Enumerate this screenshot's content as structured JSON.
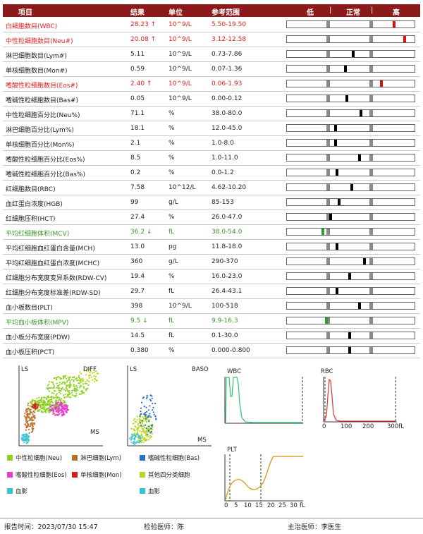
{
  "header": {
    "item": "项目",
    "result": "结果",
    "unit": "单位",
    "ref": "参考范围",
    "low": "低",
    "normal": "正常",
    "high": "高"
  },
  "rows": [
    {
      "name": "白细胞数目(WBC)",
      "result": "28.23 ↑",
      "unit": "10^9/L",
      "ref": "5.50-19.50",
      "status": "high",
      "level": 0.84
    },
    {
      "name": "中性粒细胞数目(Neu#)",
      "result": "20.08 ↑",
      "unit": "10^9/L",
      "ref": "3.12-12.58",
      "status": "high",
      "level": 0.92
    },
    {
      "name": "淋巴细胞数目(Lym#)",
      "result": "5.11",
      "unit": "10^9/L",
      "ref": "0.73-7.86",
      "status": "normal",
      "level": 0.52
    },
    {
      "name": "单核细胞数目(Mon#)",
      "result": "0.59",
      "unit": "10^9/L",
      "ref": "0.07-1.36",
      "status": "normal",
      "level": 0.46
    },
    {
      "name": "嗜酸性粒细胞数目(Eos#)",
      "result": "2.40 ↑",
      "unit": "10^9/L",
      "ref": "0.06-1.93",
      "status": "high",
      "level": 0.74
    },
    {
      "name": "嗜碱性粒细胞数目(Bas#)",
      "result": "0.05",
      "unit": "10^9/L",
      "ref": "0.00-0.12",
      "status": "normal",
      "level": 0.47
    },
    {
      "name": "中性粒细胞百分比(Neu%)",
      "result": "71.1",
      "unit": "%",
      "ref": "38.0-80.0",
      "status": "normal",
      "level": 0.58
    },
    {
      "name": "淋巴细胞百分比(Lym%)",
      "result": "18.1",
      "unit": "%",
      "ref": "12.0-45.0",
      "status": "normal",
      "level": 0.38
    },
    {
      "name": "单核细胞百分比(Mon%)",
      "result": "2.1",
      "unit": "%",
      "ref": "1.0-8.0",
      "status": "normal",
      "level": 0.38
    },
    {
      "name": "嗜酸性粒细胞百分比(Eos%)",
      "result": "8.5",
      "unit": "%",
      "ref": "1.0-11.0",
      "status": "normal",
      "level": 0.57
    },
    {
      "name": "嗜碱性粒细胞百分比(Bas%)",
      "result": "0.2",
      "unit": "%",
      "ref": "0.0-1.2",
      "status": "normal",
      "level": 0.39
    },
    {
      "name": "红细胞数目(RBC)",
      "result": "7.58",
      "unit": "10^12/L",
      "ref": "4.62-10.20",
      "status": "normal",
      "level": 0.51
    },
    {
      "name": "血红蛋白浓度(HGB)",
      "result": "99",
      "unit": "g/L",
      "ref": "85-153",
      "status": "normal",
      "level": 0.41
    },
    {
      "name": "红细胞压积(HCT)",
      "result": "27.4",
      "unit": "%",
      "ref": "26.0-47.0",
      "status": "normal",
      "level": 0.34
    },
    {
      "name": "平均红细胞体积(MCV)",
      "result": "36.2 ↓",
      "unit": "fL",
      "ref": "38.0-54.0",
      "status": "low",
      "level": 0.28
    },
    {
      "name": "平均红细胞血红蛋白含量(MCH)",
      "result": "13.0",
      "unit": "pg",
      "ref": "11.8-18.0",
      "status": "normal",
      "level": 0.39
    },
    {
      "name": "平均红细胞血红蛋白浓度(MCHC)",
      "result": "360",
      "unit": "g/L",
      "ref": "290-370",
      "status": "normal",
      "level": 0.61
    },
    {
      "name": "红细胞分布宽度变异系数(RDW-CV)",
      "result": "19.4",
      "unit": "%",
      "ref": "16.0-23.0",
      "status": "normal",
      "level": 0.49
    },
    {
      "name": "红细胞分布宽度标准差(RDW-SD)",
      "result": "29.7",
      "unit": "fL",
      "ref": "26.4-43.1",
      "status": "normal",
      "level": 0.39
    },
    {
      "name": "血小板数目(PLT)",
      "result": "398",
      "unit": "10^9/L",
      "ref": "100-518",
      "status": "normal",
      "level": 0.57
    },
    {
      "name": "平均血小板体积(MPV)",
      "result": "9.5 ↓",
      "unit": "fL",
      "ref": "9.9-16.3",
      "status": "low",
      "level": 0.31
    },
    {
      "name": "血小板分布宽度(PDW)",
      "result": "14.5",
      "unit": "fL",
      "ref": "0.1-30.0",
      "status": "normal",
      "level": 0.49
    },
    {
      "name": "血小板压积(PCT)",
      "result": "0.380",
      "unit": "%",
      "ref": "0.000-0.800",
      "status": "normal",
      "level": 0.49
    }
  ],
  "plots": {
    "diff": {
      "ls": "LS",
      "title": "DIFF",
      "ms": "MS"
    },
    "baso": {
      "ls": "LS",
      "title": "BASO",
      "ms": "MS"
    },
    "wbc": {
      "title": "WBC"
    },
    "rbc": {
      "title": "RBC",
      "ticks": [
        "0",
        "100",
        "200",
        "300fL"
      ]
    },
    "plt": {
      "title": "PLT",
      "ticks": [
        "0",
        "5",
        "10",
        "15",
        "20",
        "25",
        "30",
        "fL"
      ]
    }
  },
  "legend": [
    {
      "label": "中性粒细胞(Neu)",
      "color": "#8fd11e"
    },
    {
      "label": "淋巴细胞(Lym)",
      "color": "#b8732a"
    },
    {
      "label": "嗜碱性粒细胞(Bas)",
      "color": "#2e6fc4"
    },
    {
      "label": "嗜酸性粒细胞(Eos)",
      "color": "#e83bd0"
    },
    {
      "label": "单核细胞(Mon)",
      "color": "#d42020"
    },
    {
      "label": "其他四分类细胞",
      "color": "#b8d81e"
    },
    {
      "label": "血影",
      "color": "#35c4d4"
    },
    {
      "label": "血影",
      "color": "#35c4d4"
    }
  ],
  "footer": {
    "report_time": "报告时间：2023/07/30 15:47",
    "examiner": "检验医师：陈",
    "doctor": "主治医师：李医生"
  }
}
